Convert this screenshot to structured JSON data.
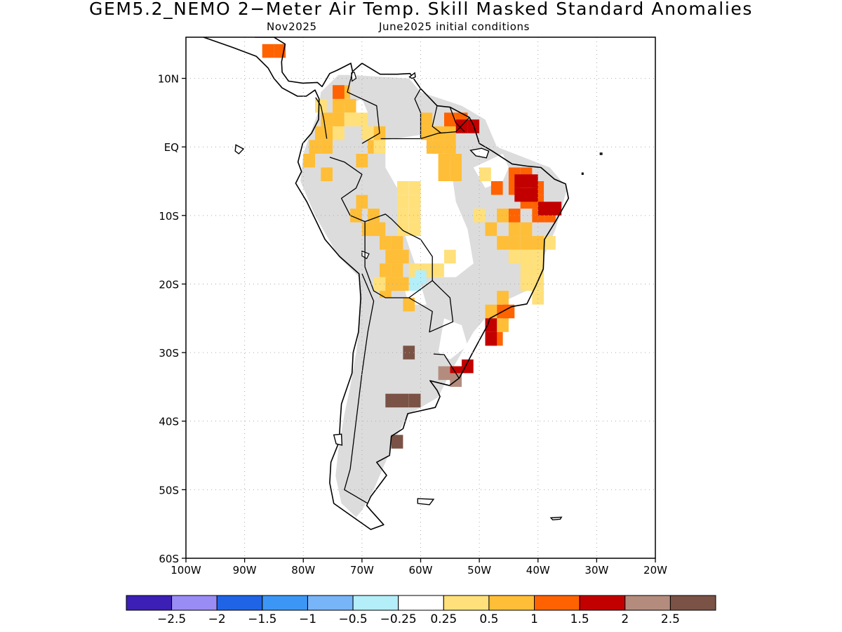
{
  "title": "GEM5.2_NEMO 2−Meter Air Temp. Skill Masked Standard Anomalies",
  "subtitle_left": "Nov2025",
  "subtitle_right": "June2025 initial conditions",
  "map_extent": {
    "lon_min": -100,
    "lon_max": -20,
    "lat_min": -60,
    "lat_max": 16
  },
  "axes": {
    "lat_ticks": [
      {
        "value": 10,
        "label": "10N"
      },
      {
        "value": 0,
        "label": "EQ"
      },
      {
        "value": -10,
        "label": "10S"
      },
      {
        "value": -20,
        "label": "20S"
      },
      {
        "value": -30,
        "label": "30S"
      },
      {
        "value": -40,
        "label": "40S"
      },
      {
        "value": -50,
        "label": "50S"
      },
      {
        "value": -60,
        "label": "60S"
      }
    ],
    "lon_ticks": [
      {
        "value": -100,
        "label": "100W"
      },
      {
        "value": -90,
        "label": "90W"
      },
      {
        "value": -80,
        "label": "80W"
      },
      {
        "value": -70,
        "label": "70W"
      },
      {
        "value": -60,
        "label": "60W"
      },
      {
        "value": -50,
        "label": "50W"
      },
      {
        "value": -40,
        "label": "40W"
      },
      {
        "value": -30,
        "label": "30W"
      },
      {
        "value": -20,
        "label": "20W"
      }
    ],
    "gridlines": true
  },
  "colorbar": {
    "colors": [
      "#3c1fb4",
      "#9a8cf5",
      "#1f64e6",
      "#3c96f5",
      "#78b4f8",
      "#b4eef8",
      "#ffffff",
      "#ffe07a",
      "#ffbe37",
      "#ff6200",
      "#c30000",
      "#b48c7e",
      "#7a5346"
    ],
    "labels": [
      "−2.5",
      "−2",
      "−1.5",
      "−1",
      "−0.5",
      "−0.25",
      "0.25",
      "0.5",
      "1",
      "1.5",
      "2",
      "2.5"
    ]
  },
  "fill_colors": {
    "no_skill": "#dcdcdc",
    "ocean": "#ffffff",
    "coast": "#000000"
  },
  "anomaly_regions": [
    {
      "category": "0.5 to 1",
      "cells": [
        [
          -74,
          8
        ],
        [
          -73,
          8
        ],
        [
          -74,
          6
        ],
        [
          -72,
          6
        ],
        [
          -76,
          4
        ],
        [
          -74,
          4
        ],
        [
          -77,
          2
        ],
        [
          -75,
          2
        ],
        [
          -78,
          0
        ],
        [
          -76,
          0
        ],
        [
          -79,
          -2
        ],
        [
          -76,
          -4
        ],
        [
          -70,
          -2
        ],
        [
          -67,
          2
        ],
        [
          -68,
          0
        ],
        [
          -59,
          4
        ],
        [
          -59,
          2
        ],
        [
          -57,
          2
        ],
        [
          -55,
          2
        ],
        [
          -57,
          0
        ],
        [
          -55,
          0
        ],
        [
          -56,
          -2
        ],
        [
          -54,
          -2
        ],
        [
          -56,
          -4
        ],
        [
          -54,
          -4
        ],
        [
          -58,
          0
        ],
        [
          -69,
          -12
        ],
        [
          -67,
          -12
        ],
        [
          -66,
          -14
        ],
        [
          -64,
          -14
        ],
        [
          -65,
          -16
        ],
        [
          -63,
          -16
        ],
        [
          -66,
          -18
        ],
        [
          -64,
          -18
        ],
        [
          -65,
          -20
        ],
        [
          -63,
          -20
        ],
        [
          -70,
          -8
        ],
        [
          -68,
          -10
        ],
        [
          -71,
          -10
        ],
        [
          -46,
          -10
        ],
        [
          -44,
          -12
        ],
        [
          -42,
          -12
        ],
        [
          -48,
          -12
        ],
        [
          -46,
          -14
        ],
        [
          -44,
          -14
        ],
        [
          -42,
          -14
        ],
        [
          -40,
          -14
        ],
        [
          -48,
          -24
        ],
        [
          -46,
          -22
        ],
        [
          -48,
          -26
        ],
        [
          -46,
          -26
        ],
        [
          -48,
          -28
        ],
        [
          -66,
          -21
        ],
        [
          -62,
          -23
        ]
      ]
    },
    {
      "category": "0.25 to 0.5",
      "cells": [
        [
          -77,
          6
        ],
        [
          -72,
          4
        ],
        [
          -74,
          2
        ],
        [
          -70,
          4
        ],
        [
          -69,
          2
        ],
        [
          -67,
          0
        ],
        [
          -63,
          -12
        ],
        [
          -61,
          -12
        ],
        [
          -63,
          -10
        ],
        [
          -61,
          -10
        ],
        [
          -63,
          -8
        ],
        [
          -61,
          -8
        ],
        [
          -63,
          -6
        ],
        [
          -61,
          -6
        ],
        [
          -67,
          -20
        ],
        [
          -61,
          -18
        ],
        [
          -59,
          -18
        ],
        [
          -57,
          -18
        ],
        [
          -55,
          -16
        ],
        [
          -49,
          -4
        ],
        [
          -40,
          -16
        ],
        [
          -42,
          -16
        ],
        [
          -44,
          -16
        ],
        [
          -42,
          -18
        ],
        [
          -40,
          -18
        ],
        [
          -42,
          -20
        ],
        [
          -40,
          -20
        ],
        [
          -50,
          -10
        ],
        [
          -38,
          -14
        ],
        [
          -40,
          -22
        ]
      ]
    },
    {
      "category": "1 to 1.5",
      "cells": [
        [
          -55,
          4
        ],
        [
          -53,
          4
        ],
        [
          -44,
          -4
        ],
        [
          -42,
          -4
        ],
        [
          -44,
          -6
        ],
        [
          -40,
          -6
        ],
        [
          -42,
          -8
        ],
        [
          -40,
          -8
        ],
        [
          -44,
          -10
        ],
        [
          -40,
          -10
        ],
        [
          -38,
          -10
        ],
        [
          -45,
          -24
        ],
        [
          -46,
          -24
        ],
        [
          -47,
          -28
        ],
        [
          -54,
          -33
        ],
        [
          -86,
          14
        ],
        [
          -84,
          14
        ],
        [
          -74,
          8
        ],
        [
          -47,
          -6
        ]
      ]
    },
    {
      "category": "1.5 to 2",
      "cells": [
        [
          -53,
          3
        ],
        [
          -51,
          3
        ],
        [
          -43,
          -5
        ],
        [
          -41,
          -5
        ],
        [
          -43,
          -7
        ],
        [
          -41,
          -7
        ],
        [
          -39,
          -9
        ],
        [
          -37,
          -9
        ],
        [
          -48,
          -26
        ],
        [
          -48,
          -28
        ],
        [
          -52,
          -32
        ],
        [
          -54,
          -33
        ]
      ]
    },
    {
      "category": "2 to 2.5",
      "cells": [
        [
          -54,
          -34
        ],
        [
          -56,
          -33
        ]
      ]
    },
    {
      "category": "above 2.5",
      "cells": [
        [
          -62,
          -30
        ],
        [
          -65,
          -37
        ],
        [
          -63,
          -37
        ],
        [
          -61,
          -37
        ],
        [
          -64,
          -43
        ]
      ]
    },
    {
      "category": "-0.5 to -0.25",
      "cells": [
        [
          -60,
          -19
        ],
        [
          -61,
          -20
        ]
      ]
    }
  ]
}
